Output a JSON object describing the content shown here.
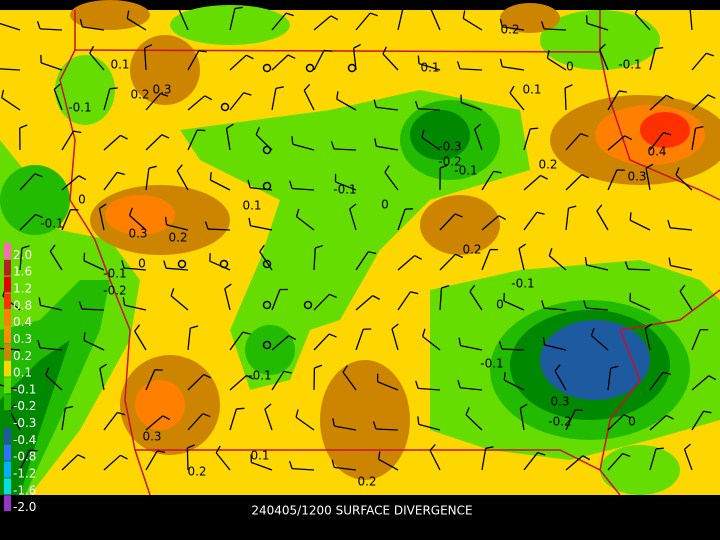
{
  "title": "240405/1200 SURFACE DIVERGENCE",
  "legend": [
    {
      "label": "2.0",
      "color": "#ff69b4"
    },
    {
      "label": "1.6",
      "color": "#b22222"
    },
    {
      "label": "1.2",
      "color": "#e00000"
    },
    {
      "label": "0.8",
      "color": "#ff3000"
    },
    {
      "label": "0.4",
      "color": "#ff7f00"
    },
    {
      "label": "0.3",
      "color": "#ff8c00"
    },
    {
      "label": "0.2",
      "color": "#cd8500"
    },
    {
      "label": "0.1",
      "color": "#ffd700"
    },
    {
      "label": "-0.1",
      "color": "#66dd00"
    },
    {
      "label": "-0.2",
      "color": "#22bb00"
    },
    {
      "label": "-0.3",
      "color": "#008800"
    },
    {
      "label": "-0.4",
      "color": "#1e5aa0"
    },
    {
      "label": "-0.8",
      "color": "#3070ff"
    },
    {
      "label": "-1.2",
      "color": "#00b0ff"
    },
    {
      "label": "-1.6",
      "color": "#00e0e0"
    },
    {
      "label": "-2.0",
      "color": "#9932cc"
    }
  ],
  "contour_labels": [
    "0.2",
    "0.1",
    "0.3",
    "0.2",
    "-0.1",
    "0",
    "0.1",
    "-0.1",
    "0.1",
    "-0.3",
    "-0.2",
    "-0.1",
    "0.4",
    "0.3",
    "0.2",
    "-0.1",
    "0",
    "0.1",
    "-0.1",
    "0.3",
    "0.2",
    "0",
    "0.2",
    "-0.1",
    "-0.2",
    "0",
    "-0.1",
    "0",
    "-0.1",
    "-0.1",
    "0.3",
    "-0.2",
    "0",
    "0.3",
    "0.1",
    "0.2",
    "0.2"
  ]
}
